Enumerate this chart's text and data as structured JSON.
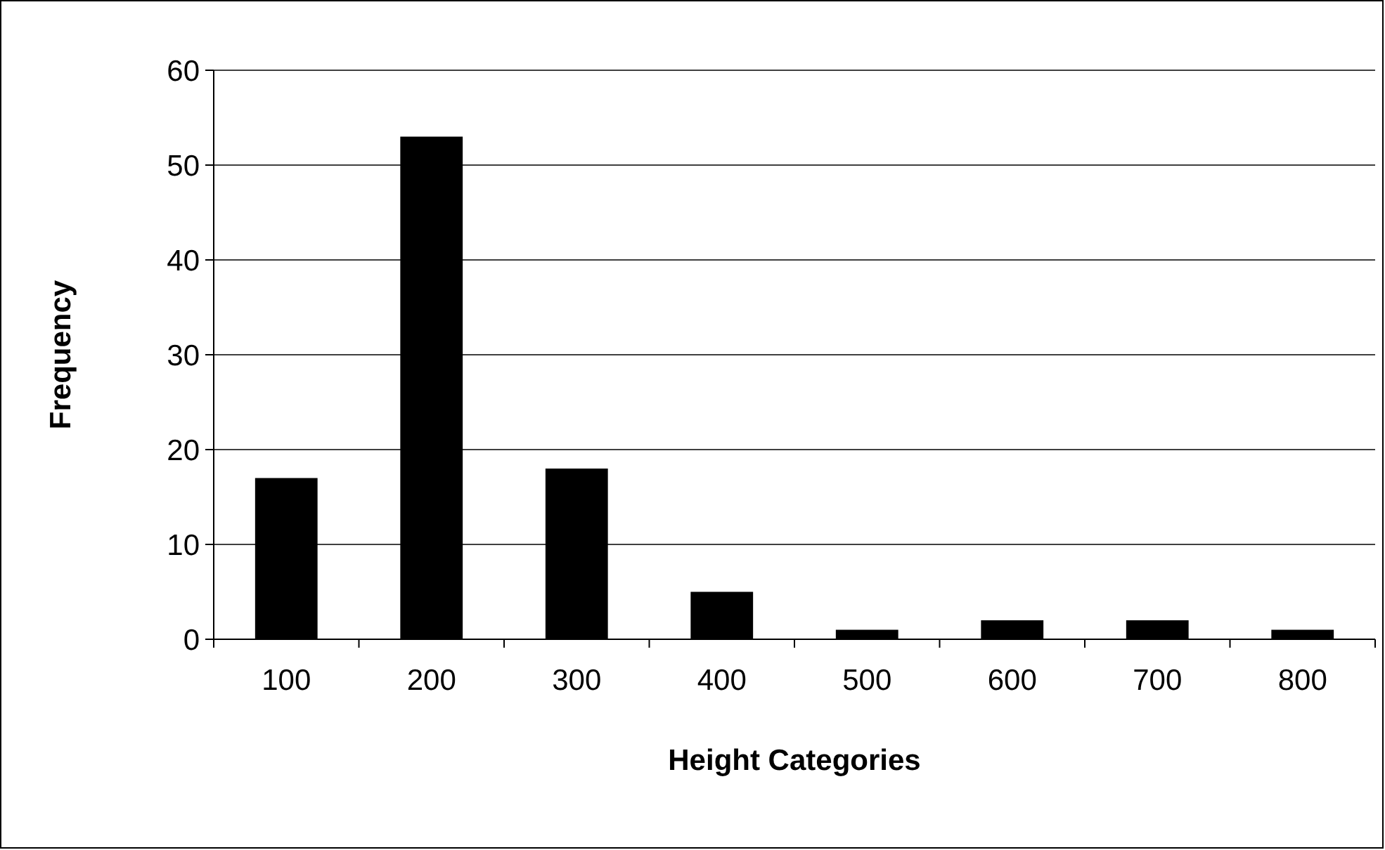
{
  "chart_data": {
    "type": "bar",
    "xlabel": "Height Categories",
    "ylabel": "Frequency",
    "categories": [
      "100",
      "200",
      "300",
      "400",
      "500",
      "600",
      "700",
      "800"
    ],
    "values": [
      17,
      53,
      18,
      5,
      1,
      2,
      2,
      1
    ],
    "color": "#000000",
    "ylim": [
      0,
      60
    ],
    "yticks": [
      0,
      10,
      20,
      30,
      40,
      50,
      60
    ],
    "grid": "y"
  }
}
